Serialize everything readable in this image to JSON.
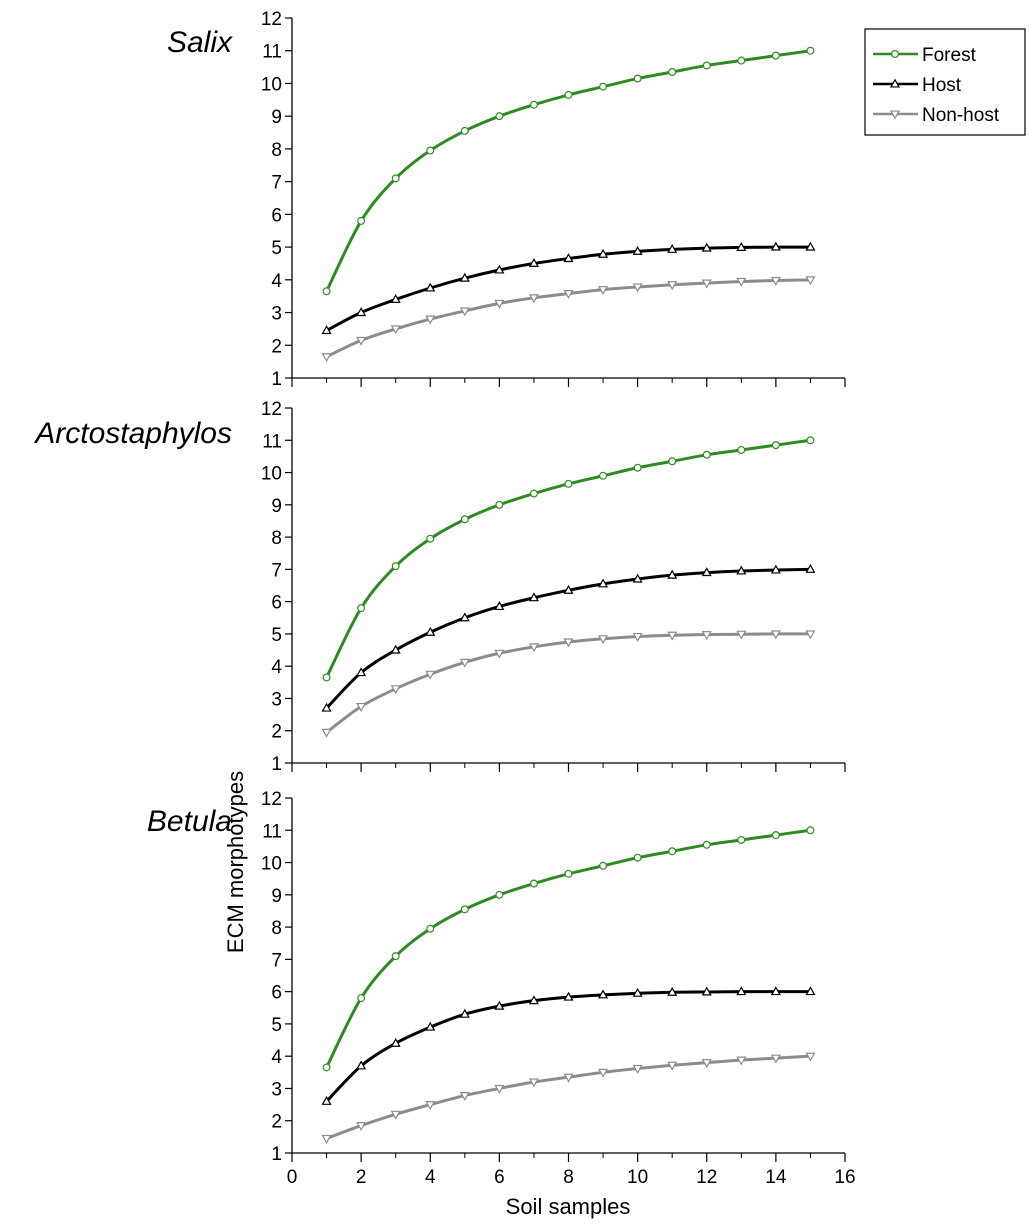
{
  "chart_data": {
    "type": "line",
    "xlabel": "Soil samples",
    "ylabel": "ECM morphotypes",
    "xlim": [
      0,
      16
    ],
    "xticks": [
      0,
      2,
      4,
      6,
      8,
      10,
      12,
      14,
      16
    ],
    "ylim": [
      1,
      12
    ],
    "yticks": [
      1,
      2,
      3,
      4,
      5,
      6,
      7,
      8,
      9,
      10,
      11,
      12
    ],
    "grid": false,
    "legend_position": "top-right",
    "legend": [
      {
        "name": "Forest",
        "color": "#2e8b22",
        "marker": "circle"
      },
      {
        "name": "Host",
        "color": "#000000",
        "marker": "triangle-up"
      },
      {
        "name": "Non-host",
        "color": "#8c8c8c",
        "marker": "triangle-down"
      }
    ],
    "x": [
      1,
      2,
      3,
      4,
      5,
      6,
      7,
      8,
      9,
      10,
      11,
      12,
      13,
      14,
      15
    ],
    "panels": [
      {
        "title": "Salix",
        "series": [
          {
            "name": "Forest",
            "values": [
              3.65,
              5.8,
              7.1,
              7.95,
              8.55,
              9.0,
              9.35,
              9.65,
              9.9,
              10.15,
              10.35,
              10.55,
              10.7,
              10.85,
              11.0
            ]
          },
          {
            "name": "Host",
            "values": [
              2.45,
              3.0,
              3.4,
              3.75,
              4.05,
              4.3,
              4.5,
              4.65,
              4.78,
              4.87,
              4.93,
              4.97,
              4.99,
              5.0,
              5.0
            ]
          },
          {
            "name": "Non-host",
            "values": [
              1.65,
              2.15,
              2.5,
              2.8,
              3.05,
              3.28,
              3.45,
              3.58,
              3.7,
              3.78,
              3.85,
              3.9,
              3.95,
              3.98,
              4.0
            ]
          }
        ]
      },
      {
        "title": "Arctostaphylos",
        "series": [
          {
            "name": "Forest",
            "values": [
              3.65,
              5.8,
              7.1,
              7.95,
              8.55,
              9.0,
              9.35,
              9.65,
              9.9,
              10.15,
              10.35,
              10.55,
              10.7,
              10.85,
              11.0
            ]
          },
          {
            "name": "Host",
            "values": [
              2.7,
              3.8,
              4.5,
              5.05,
              5.5,
              5.85,
              6.12,
              6.35,
              6.55,
              6.7,
              6.82,
              6.9,
              6.95,
              6.98,
              7.0
            ]
          },
          {
            "name": "Non-host",
            "values": [
              1.95,
              2.75,
              3.3,
              3.75,
              4.12,
              4.4,
              4.6,
              4.75,
              4.85,
              4.92,
              4.96,
              4.98,
              4.99,
              5.0,
              5.0
            ]
          }
        ]
      },
      {
        "title": "Betula",
        "series": [
          {
            "name": "Forest",
            "values": [
              3.65,
              5.8,
              7.1,
              7.95,
              8.55,
              9.0,
              9.35,
              9.65,
              9.9,
              10.15,
              10.35,
              10.55,
              10.7,
              10.85,
              11.0
            ]
          },
          {
            "name": "Host",
            "values": [
              2.6,
              3.7,
              4.4,
              4.9,
              5.3,
              5.55,
              5.72,
              5.83,
              5.9,
              5.95,
              5.98,
              5.99,
              6.0,
              6.0,
              6.0
            ]
          },
          {
            "name": "Non-host",
            "values": [
              1.45,
              1.85,
              2.2,
              2.5,
              2.78,
              3.0,
              3.2,
              3.35,
              3.5,
              3.62,
              3.72,
              3.8,
              3.88,
              3.94,
              4.0
            ]
          }
        ]
      }
    ]
  }
}
